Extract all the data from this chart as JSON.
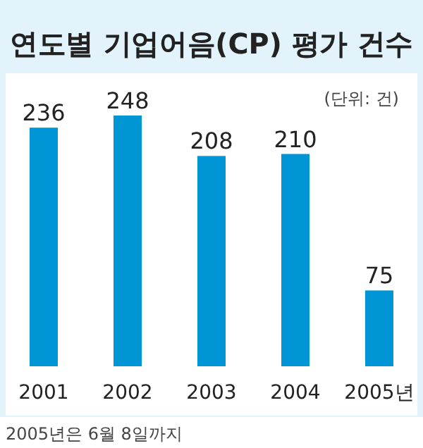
{
  "chart_data": {
    "type": "bar",
    "title": "연도별 기업어음(CP) 평가 건수",
    "subtitle": "(단위: 건)",
    "categories": [
      "2001",
      "2002",
      "2003",
      "2004",
      "2005년"
    ],
    "values": [
      236,
      248,
      208,
      210,
      75
    ],
    "color": "#0096d6",
    "data_labels": true,
    "annotations": [
      "2005년은 6월 8일까지"
    ]
  }
}
